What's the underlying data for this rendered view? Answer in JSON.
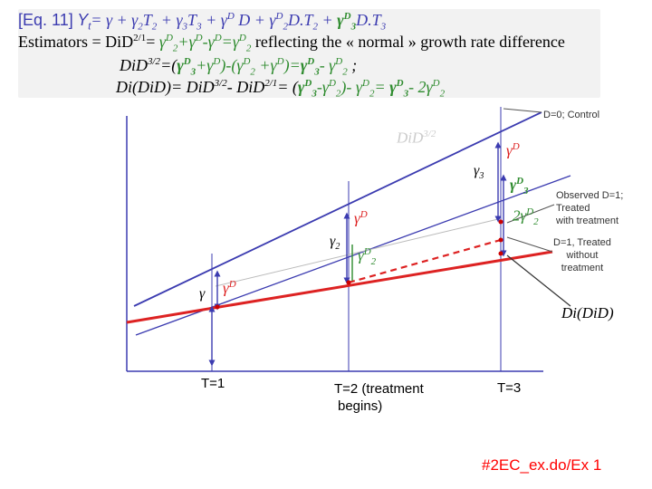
{
  "header": {
    "eq_tag": "[Eq. 11]",
    "eq_y": "Y",
    "eq_t": "t",
    "eq_body_1": "= γ + γ",
    "eq_body_2": "T",
    "eq_body_3": " + γ",
    "eq_body_4": "T",
    "eq_body_5": " + γ",
    "eq_body_6": " D + γ",
    "eq_body_7": "D.T",
    "eq_body_8": " + ",
    "eq_body_9": "γ",
    "eq_body_10": "D.T",
    "sub_2": "2",
    "sub_3": "3",
    "sup_D": "D",
    "line2_text": "Estimators = DiD",
    "line2_sup": "2/1",
    "line2_eq": "= ",
    "line2_tail": " reflecting the « normal » growth rate difference",
    "line3_text": "DiD",
    "line3_sup": "3/2",
    "line3_eq": "=(",
    "line3_tail": " ;",
    "line4_text": "Di(DiD)= DiD",
    "line4_sup1": "3/2",
    "line4_mid": "- DiD",
    "line4_sup2": "2/1",
    "line4_eq": "= ("
  },
  "labels": {
    "control": "D=0; Control",
    "did32": "DiD",
    "did32_sup": "3/2",
    "gamma": "γ",
    "gamma2": "γ",
    "gamma3": "γ",
    "sub2": "2",
    "sub3": "3",
    "gammaD": "γ",
    "supD": "D",
    "two": "2",
    "observed_1": "Observed D=1;",
    "observed_2": "Treated",
    "observed_3": "with treatment",
    "untreated_1": "D=1, Treated",
    "untreated_2": "without",
    "untreated_3": "treatment",
    "didid": "Di(DiD)",
    "t1": "T=1",
    "t2_1": "T=2 (treatment",
    "t2_2": "begins)",
    "t3": "T=3",
    "footer": "#2EC_ex.do/Ex 1"
  },
  "colors": {
    "blue": "#3b3bb0",
    "red": "#dd2222",
    "green": "#2e8b2e",
    "header_bg": "#f2f2f2"
  }
}
